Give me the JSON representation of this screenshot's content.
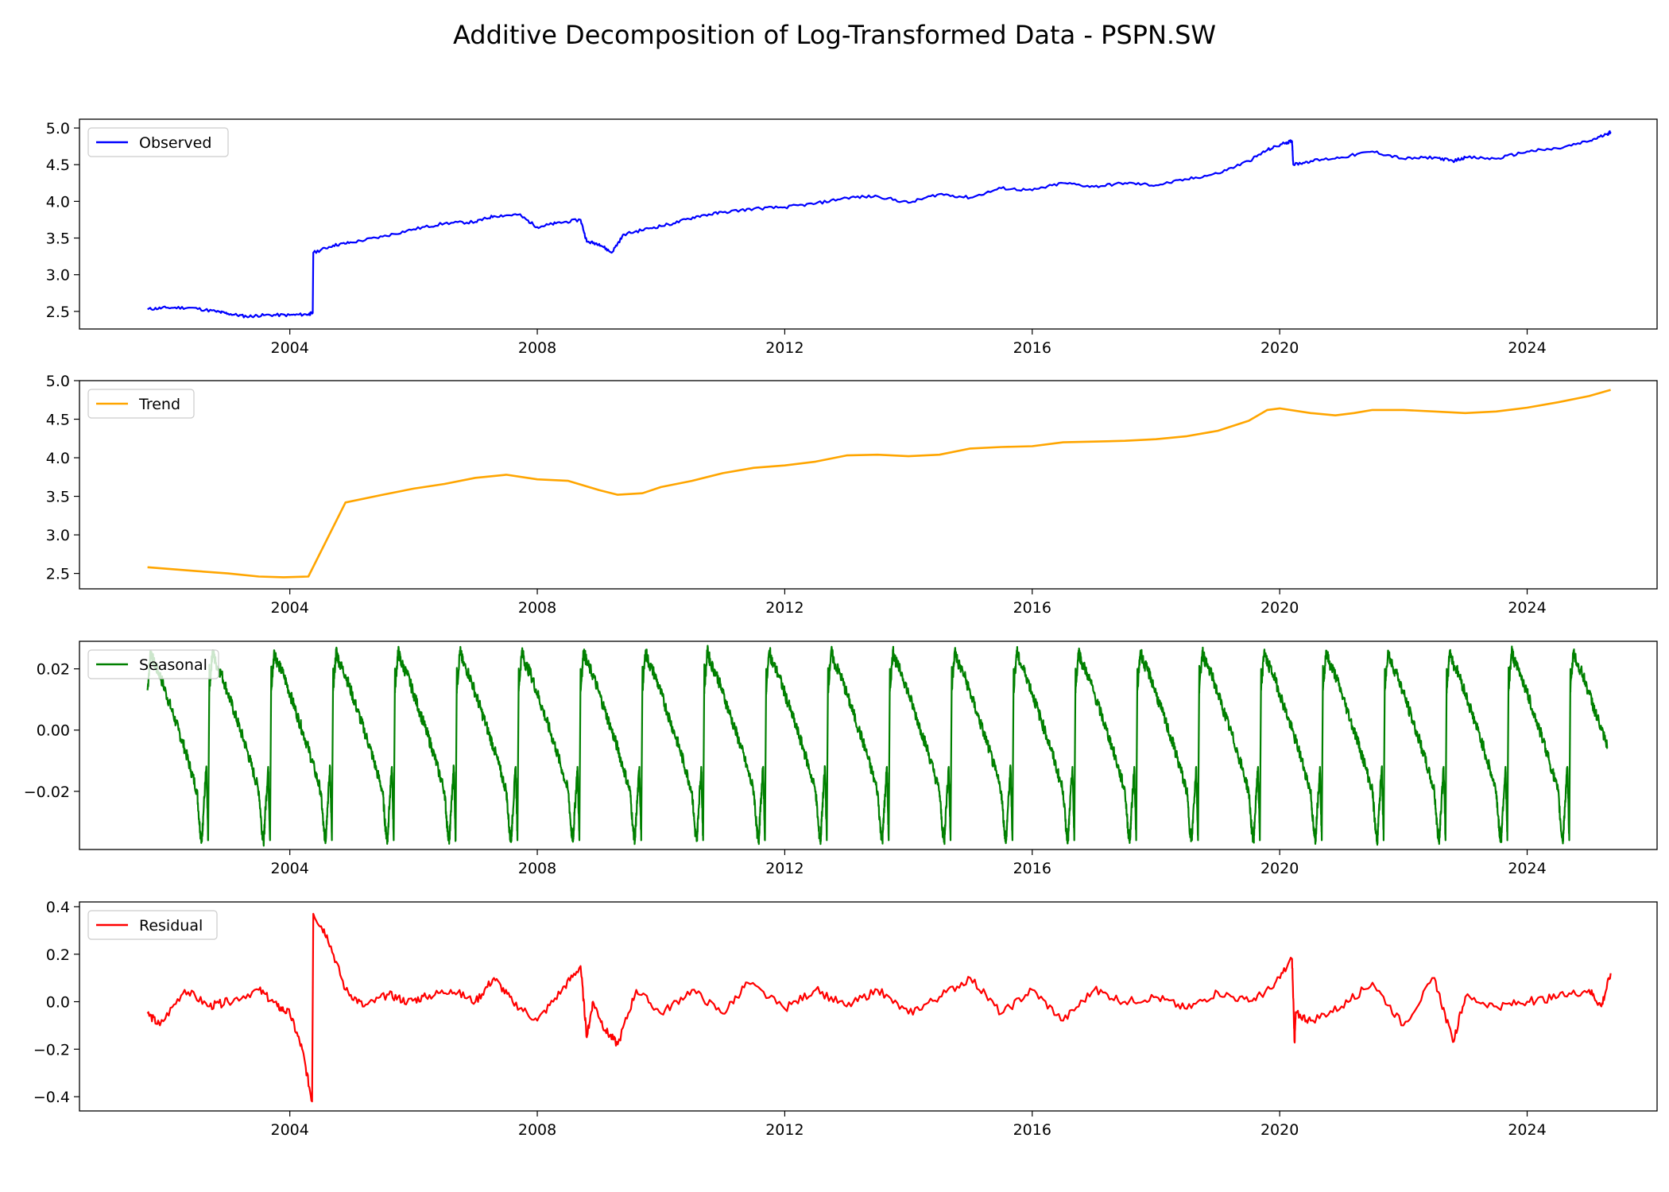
{
  "figure": {
    "title": "Additive Decomposition of Log-Transformed Data - PSPN.SW"
  },
  "chart_data": [
    {
      "type": "line",
      "name": "Observed",
      "color": "#0000ff",
      "legend": "upper left",
      "xlim": [
        2000.6,
        2026.1
      ],
      "ylim": [
        2.26,
        5.12
      ],
      "xticks": [
        2004,
        2008,
        2012,
        2016,
        2020,
        2024
      ],
      "xtick_labels": [
        "2004",
        "2008",
        "2012",
        "2016",
        "2020",
        "2024"
      ],
      "yticks": [
        2.5,
        3.0,
        3.5,
        4.0,
        4.5,
        5.0
      ],
      "ytick_labels": [
        "2.5",
        "3.0",
        "3.5",
        "4.0",
        "4.5",
        "5.0"
      ],
      "x": [
        2001.7,
        2002.0,
        2002.4,
        2002.8,
        2003.0,
        2003.3,
        2003.6,
        2004.0,
        2004.3,
        2004.37,
        2004.38,
        2004.7,
        2005.0,
        2005.5,
        2006.0,
        2006.5,
        2007.0,
        2007.3,
        2007.7,
        2008.0,
        2008.3,
        2008.7,
        2008.8,
        2009.0,
        2009.2,
        2009.4,
        2009.8,
        2010.2,
        2010.6,
        2011.0,
        2011.5,
        2012.0,
        2012.5,
        2013.0,
        2013.5,
        2014.0,
        2014.5,
        2015.0,
        2015.5,
        2016.0,
        2016.5,
        2017.0,
        2017.5,
        2018.0,
        2018.5,
        2019.0,
        2019.5,
        2019.8,
        2020.1,
        2020.2,
        2020.22,
        2020.5,
        2021.0,
        2021.5,
        2022.0,
        2022.5,
        2022.8,
        2023.0,
        2023.5,
        2024.0,
        2024.5,
        2025.0,
        2025.3,
        2025.35
      ],
      "values": [
        2.53,
        2.55,
        2.55,
        2.5,
        2.47,
        2.43,
        2.45,
        2.45,
        2.46,
        2.48,
        3.3,
        3.4,
        3.44,
        3.52,
        3.62,
        3.7,
        3.72,
        3.8,
        3.82,
        3.65,
        3.7,
        3.75,
        3.45,
        3.42,
        3.3,
        3.55,
        3.63,
        3.7,
        3.8,
        3.85,
        3.9,
        3.92,
        3.97,
        4.05,
        4.07,
        3.98,
        4.1,
        4.05,
        4.18,
        4.15,
        4.25,
        4.2,
        4.25,
        4.22,
        4.3,
        4.38,
        4.55,
        4.7,
        4.8,
        4.82,
        4.5,
        4.55,
        4.6,
        4.68,
        4.58,
        4.6,
        4.55,
        4.6,
        4.58,
        4.68,
        4.72,
        4.82,
        4.92,
        4.95
      ]
    },
    {
      "type": "line",
      "name": "Trend",
      "color": "#ffa500",
      "legend": "upper left",
      "xlim": [
        2000.6,
        2026.1
      ],
      "ylim": [
        2.3,
        5.0
      ],
      "xticks": [
        2004,
        2008,
        2012,
        2016,
        2020,
        2024
      ],
      "xtick_labels": [
        "2004",
        "2008",
        "2012",
        "2016",
        "2020",
        "2024"
      ],
      "yticks": [
        2.5,
        3.0,
        3.5,
        4.0,
        4.5,
        5.0
      ],
      "ytick_labels": [
        "2.5",
        "3.0",
        "3.5",
        "4.0",
        "4.5",
        "5.0"
      ],
      "x": [
        2001.7,
        2002.5,
        2003.0,
        2003.5,
        2003.9,
        2004.3,
        2004.9,
        2005.5,
        2006.0,
        2006.5,
        2007.0,
        2007.5,
        2008.0,
        2008.5,
        2009.0,
        2009.3,
        2009.7,
        2010.0,
        2010.5,
        2011.0,
        2011.5,
        2012.0,
        2012.5,
        2013.0,
        2013.5,
        2014.0,
        2014.5,
        2015.0,
        2015.5,
        2016.0,
        2016.5,
        2017.0,
        2017.5,
        2018.0,
        2018.5,
        2019.0,
        2019.5,
        2019.8,
        2020.0,
        2020.5,
        2020.9,
        2021.2,
        2021.5,
        2022.0,
        2022.5,
        2023.0,
        2023.5,
        2024.0,
        2024.5,
        2025.0,
        2025.35
      ],
      "values": [
        2.58,
        2.53,
        2.5,
        2.46,
        2.45,
        2.46,
        3.42,
        3.52,
        3.6,
        3.66,
        3.74,
        3.78,
        3.72,
        3.7,
        3.58,
        3.52,
        3.54,
        3.62,
        3.7,
        3.8,
        3.87,
        3.9,
        3.95,
        4.03,
        4.04,
        4.02,
        4.04,
        4.12,
        4.14,
        4.15,
        4.2,
        4.21,
        4.22,
        4.24,
        4.28,
        4.35,
        4.48,
        4.62,
        4.64,
        4.58,
        4.55,
        4.58,
        4.62,
        4.62,
        4.6,
        4.58,
        4.6,
        4.65,
        4.72,
        4.8,
        4.88
      ]
    },
    {
      "type": "line",
      "name": "Seasonal",
      "color": "#008000",
      "legend": "upper left",
      "xlim": [
        2000.6,
        2026.1
      ],
      "ylim": [
        -0.039,
        0.029
      ],
      "xticks": [
        2004,
        2008,
        2012,
        2016,
        2020,
        2024
      ],
      "xtick_labels": [
        "2004",
        "2008",
        "2012",
        "2016",
        "2020",
        "2024"
      ],
      "yticks": [
        -0.02,
        0.0,
        0.02
      ],
      "ytick_labels": [
        "−0.02",
        "0.00",
        "0.02"
      ],
      "pattern": "annual sawtooth repeated every year from 2001.7 to 2025.35: peak near 0.026 early in year, decaying to about -0.036 late in year",
      "x_start": 2001.7,
      "x_end": 2025.35,
      "period_years": 1.0,
      "cycle_phase": [
        0.0,
        0.05,
        0.1,
        0.2,
        0.3,
        0.4,
        0.5,
        0.6,
        0.7,
        0.8,
        0.85,
        0.88,
        0.9,
        0.95,
        0.98,
        1.0
      ],
      "cycle_values": [
        0.013,
        0.026,
        0.022,
        0.018,
        0.012,
        0.006,
        0.0,
        -0.006,
        -0.013,
        -0.02,
        -0.033,
        -0.036,
        -0.028,
        -0.012,
        -0.036,
        0.02
      ]
    },
    {
      "type": "line",
      "name": "Residual",
      "color": "#ff0000",
      "legend": "upper left",
      "xlim": [
        2000.6,
        2026.1
      ],
      "ylim": [
        -0.46,
        0.42
      ],
      "xticks": [
        2004,
        2008,
        2012,
        2016,
        2020,
        2024
      ],
      "xtick_labels": [
        "2004",
        "2008",
        "2012",
        "2016",
        "2020",
        "2024"
      ],
      "yticks": [
        -0.4,
        -0.2,
        0.0,
        0.2,
        0.4
      ],
      "ytick_labels": [
        "−0.4",
        "−0.2",
        "0.0",
        "0.2",
        "0.4"
      ],
      "x": [
        2001.7,
        2001.9,
        2002.3,
        2002.7,
        2003.0,
        2003.5,
        2003.8,
        2004.0,
        2004.2,
        2004.36,
        2004.38,
        2004.6,
        2004.9,
        2005.2,
        2005.6,
        2005.9,
        2006.2,
        2006.6,
        2007.0,
        2007.3,
        2007.6,
        2008.0,
        2008.4,
        2008.7,
        2008.8,
        2008.9,
        2009.1,
        2009.3,
        2009.6,
        2010.0,
        2010.5,
        2011.0,
        2011.4,
        2012.0,
        2012.5,
        2013.0,
        2013.5,
        2014.0,
        2014.5,
        2015.0,
        2015.5,
        2016.0,
        2016.5,
        2017.0,
        2017.5,
        2018.0,
        2018.5,
        2019.0,
        2019.5,
        2019.9,
        2020.2,
        2020.24,
        2020.26,
        2020.5,
        2021.0,
        2021.5,
        2022.0,
        2022.5,
        2022.8,
        2023.0,
        2023.5,
        2024.0,
        2024.5,
        2025.0,
        2025.2,
        2025.35
      ],
      "values": [
        -0.05,
        -0.1,
        0.05,
        -0.02,
        0.0,
        0.05,
        -0.02,
        -0.05,
        -0.2,
        -0.42,
        0.37,
        0.28,
        0.05,
        -0.02,
        0.03,
        0.0,
        0.02,
        0.05,
        0.0,
        0.1,
        0.0,
        -0.08,
        0.05,
        0.15,
        -0.15,
        0.0,
        -0.12,
        -0.18,
        0.05,
        -0.05,
        0.05,
        -0.05,
        0.08,
        -0.03,
        0.05,
        -0.02,
        0.05,
        -0.05,
        0.02,
        0.1,
        -0.05,
        0.05,
        -0.08,
        0.05,
        0.0,
        0.02,
        -0.03,
        0.04,
        0.0,
        0.06,
        0.18,
        -0.17,
        -0.05,
        -0.08,
        -0.02,
        0.08,
        -0.1,
        0.1,
        -0.17,
        0.02,
        -0.02,
        0.0,
        0.02,
        0.05,
        -0.02,
        0.12
      ]
    }
  ]
}
